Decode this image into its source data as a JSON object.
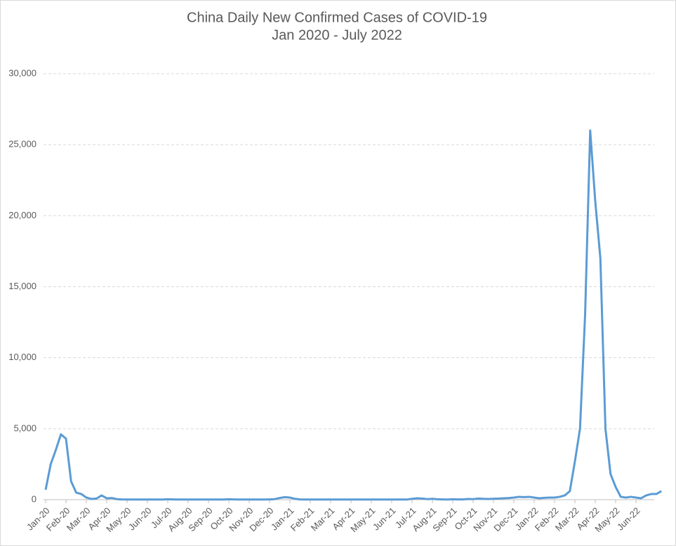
{
  "chart_data": {
    "type": "line",
    "title": "China Daily New Confirmed Cases of COVID-19",
    "subtitle": "Jan 2020 - July 2022",
    "categories": [
      "Jan-20",
      null,
      null,
      null,
      "Feb-20",
      null,
      null,
      null,
      "Mar-20",
      null,
      null,
      null,
      "Apr-20",
      null,
      null,
      null,
      "May-20",
      null,
      null,
      null,
      "Jun-20",
      null,
      null,
      null,
      "Jul-20",
      null,
      null,
      null,
      "Aug-20",
      null,
      null,
      null,
      "Sep-20",
      null,
      null,
      null,
      "Oct-20",
      null,
      null,
      null,
      "Nov-20",
      null,
      null,
      null,
      "Dec-20",
      null,
      null,
      null,
      "Jan-21",
      null,
      null,
      null,
      "Feb-21",
      null,
      null,
      null,
      "Mar-21",
      null,
      null,
      null,
      "Apr-21",
      null,
      null,
      null,
      "May-21",
      null,
      null,
      null,
      "Jun-21",
      null,
      null,
      null,
      "Jul-21",
      null,
      null,
      null,
      "Aug-21",
      null,
      null,
      null,
      "Sep-21",
      null,
      null,
      null,
      "Oct-21",
      null,
      null,
      null,
      "Nov-21",
      null,
      null,
      null,
      "Dec-21",
      null,
      null,
      null,
      "Jan-22",
      null,
      null,
      null,
      "Feb-22",
      null,
      null,
      null,
      "Mar-22",
      null,
      null,
      null,
      "Apr-22",
      null,
      null,
      null,
      "May-22",
      null,
      null,
      null,
      "Jun-22",
      null,
      null,
      null,
      null,
      null
    ],
    "values": [
      700,
      2500,
      3500,
      4600,
      4300,
      1300,
      500,
      400,
      150,
      50,
      80,
      300,
      100,
      120,
      40,
      20,
      10,
      10,
      10,
      10,
      10,
      10,
      10,
      10,
      30,
      20,
      10,
      10,
      10,
      10,
      10,
      10,
      10,
      10,
      10,
      10,
      30,
      20,
      10,
      10,
      10,
      10,
      10,
      10,
      20,
      40,
      120,
      180,
      150,
      60,
      20,
      10,
      10,
      10,
      10,
      10,
      10,
      10,
      10,
      10,
      10,
      10,
      10,
      10,
      10,
      10,
      10,
      10,
      10,
      10,
      10,
      10,
      60,
      100,
      80,
      40,
      60,
      30,
      20,
      10,
      30,
      20,
      20,
      50,
      40,
      80,
      60,
      50,
      70,
      80,
      100,
      120,
      150,
      200,
      180,
      200,
      150,
      100,
      130,
      150,
      150,
      200,
      300,
      600,
      2700,
      5000,
      13000,
      26000,
      21000,
      17000,
      5000,
      1800,
      900,
      200,
      150,
      200,
      150,
      100,
      300,
      400,
      400,
      600
    ],
    "color": "#5b9bd5",
    "ylim": [
      0,
      30000
    ],
    "yticks": [
      0,
      {
        "value": 5000,
        "label": "5,000"
      },
      {
        "value": 10000,
        "label": "10,000"
      },
      {
        "value": 15000,
        "label": "15,000"
      },
      {
        "value": 20000,
        "label": "20,000"
      },
      {
        "value": 25000,
        "label": "25,000"
      },
      {
        "value": 30000,
        "label": "30,000"
      }
    ],
    "grid": true
  }
}
